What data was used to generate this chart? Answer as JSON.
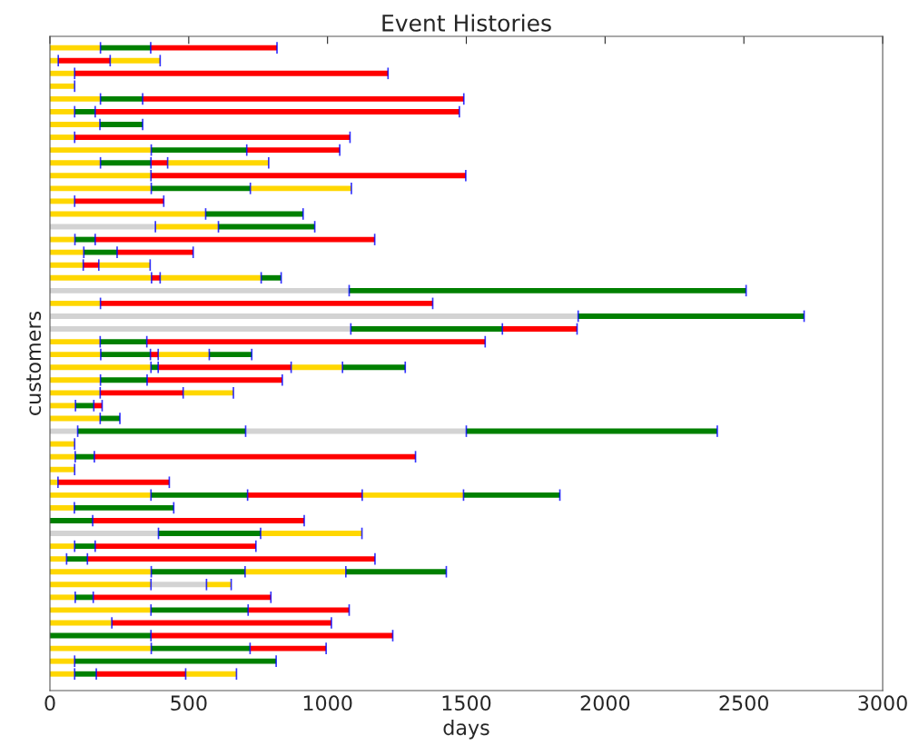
{
  "chart_data": {
    "type": "bar",
    "orientation": "horizontal",
    "stacked": true,
    "title": "Event Histories",
    "xlabel": "days",
    "ylabel": "customers",
    "categories": [
      null,
      null,
      null,
      null,
      null,
      null,
      null,
      null,
      null,
      null,
      null,
      null,
      null,
      null,
      null,
      null,
      null,
      null,
      null,
      null,
      null,
      null,
      null,
      null,
      null,
      null,
      null,
      null,
      null,
      null,
      null,
      null,
      null,
      null,
      null,
      null,
      null,
      null,
      null,
      null,
      null,
      null,
      null,
      null,
      null,
      null,
      null,
      null,
      null,
      null
    ],
    "tick_labels": "x",
    "xlim": [
      0,
      3000
    ],
    "xticks": [
      0,
      500,
      1000,
      1500,
      2000,
      2500,
      3000
    ],
    "grid": false,
    "series": [
      {
        "values": [
          182,
          30,
          89,
          89,
          182,
          89,
          180,
          89,
          365,
          182,
          364,
          365,
          89,
          561,
          380,
          90,
          122,
          120,
          366,
          1078,
          182,
          1903,
          1084,
          181,
          183,
          364,
          182,
          181,
          92,
          181,
          100,
          89,
          91,
          89,
          29,
          364,
          88,
          154,
          391,
          89,
          60,
          365,
          364,
          91,
          364,
          223,
          364,
          365,
          89,
          89
        ],
        "colors": [
          "#ffd700",
          "#ffd700",
          "#ffd700",
          "#ffd700",
          "#ffd700",
          "#ffd700",
          "#ffd700",
          "#ffd700",
          "#ffd700",
          "#ffd700",
          "#ffd700",
          "#ffd700",
          "#ffd700",
          "#ffd700",
          "#d3d3d3",
          "#ffd700",
          "#ffd700",
          "#ffd700",
          "#ffd700",
          "#d3d3d3",
          "#ffd700",
          "#d3d3d3",
          "#d3d3d3",
          "#ffd700",
          "#ffd700",
          "#ffd700",
          "#ffd700",
          "#ffd700",
          "#ffd700",
          "#ffd700",
          "#d3d3d3",
          "#ffd700",
          "#ffd700",
          "#ffd700",
          "#ffd700",
          "#ffd700",
          "#ffd700",
          "#008000",
          "#d3d3d3",
          "#ffd700",
          "#ffd700",
          "#ffd700",
          "#ffd700",
          "#ffd700",
          "#ffd700",
          "#ffd700",
          "#008000",
          "#ffd700",
          "#ffd700",
          "#ffd700"
        ]
      },
      {
        "values": [
          181,
          187,
          1129,
          null,
          152,
          74,
          154,
          992,
          344,
          182,
          1134,
          357,
          321,
          351,
          227,
          73,
          120,
          56,
          31,
          1430,
          1197,
          814,
          546,
          168,
          179,
          26,
          168,
          299,
          66,
          71,
          605,
          null,
          69,
          null,
          401,
          348,
          358,
          762,
          368,
          74,
          75,
          338,
          200,
          65,
          350,
          791,
          871,
          356,
          726,
          78
        ],
        "colors": [
          "#008000",
          "#ff0000",
          "#ff0000",
          null,
          "#008000",
          "#008000",
          "#008000",
          "#ff0000",
          "#008000",
          "#008000",
          "#ff0000",
          "#008000",
          "#ff0000",
          "#008000",
          "#ffd700",
          "#008000",
          "#008000",
          "#ff0000",
          "#ff0000",
          "#008000",
          "#ff0000",
          "#008000",
          "#008000",
          "#008000",
          "#008000",
          "#008000",
          "#008000",
          "#ff0000",
          "#008000",
          "#008000",
          "#008000",
          null,
          "#008000",
          null,
          "#ff0000",
          "#008000",
          "#008000",
          "#ff0000",
          "#008000",
          "#008000",
          "#008000",
          "#008000",
          "#d3d3d3",
          "#008000",
          "#008000",
          "#ff0000",
          "#ff0000",
          "#008000",
          "#008000",
          "#008000"
        ]
      },
      {
        "values": [
          455,
          180,
          null,
          null,
          1157,
          1312,
          null,
          null,
          335,
          60,
          null,
          364,
          null,
          null,
          347,
          1007,
          274,
          185,
          364,
          null,
          null,
          null,
          269,
          1219,
          28,
          479,
          487,
          181,
          30,
          null,
          795,
          null,
          1157,
          null,
          null,
          413,
          null,
          null,
          365,
          579,
          1036,
          363,
          89,
          640,
          364,
          null,
          null,
          274,
          null,
          322
        ],
        "colors": [
          "#ff0000",
          "#ffd700",
          null,
          null,
          "#ff0000",
          "#ff0000",
          null,
          null,
          "#ff0000",
          "#ff0000",
          null,
          "#ffd700",
          null,
          null,
          "#008000",
          "#ff0000",
          "#ff0000",
          "#ffd700",
          "#ffd700",
          null,
          null,
          null,
          "#ff0000",
          "#ff0000",
          "#ff0000",
          "#ff0000",
          "#ff0000",
          "#ffd700",
          "#ff0000",
          null,
          "#d3d3d3",
          null,
          "#ff0000",
          null,
          null,
          "#ff0000",
          null,
          null,
          "#ffd700",
          "#ff0000",
          "#ff0000",
          "#ffd700",
          "#ffd700",
          "#ff0000",
          "#ff0000",
          null,
          null,
          "#ff0000",
          null,
          "#ff0000"
        ]
      },
      {
        "values": [
          null,
          null,
          null,
          null,
          null,
          null,
          null,
          null,
          null,
          364,
          null,
          null,
          null,
          null,
          null,
          null,
          null,
          null,
          72,
          null,
          null,
          null,
          null,
          null,
          184,
          185,
          null,
          null,
          null,
          null,
          904,
          null,
          null,
          null,
          null,
          365,
          null,
          null,
          null,
          null,
          null,
          362,
          null,
          null,
          null,
          null,
          null,
          null,
          null,
          183
        ],
        "colors": [
          null,
          null,
          null,
          null,
          null,
          null,
          null,
          null,
          null,
          "#ffd700",
          null,
          null,
          null,
          null,
          null,
          null,
          null,
          null,
          "#008000",
          null,
          null,
          null,
          null,
          null,
          "#ffd700",
          "#ffd700",
          null,
          null,
          null,
          null,
          "#008000",
          null,
          null,
          null,
          null,
          "#ffd700",
          null,
          null,
          null,
          null,
          null,
          "#008000",
          null,
          null,
          null,
          null,
          null,
          null,
          null,
          "#ffd700"
        ]
      },
      {
        "values": [
          null,
          null,
          null,
          null,
          null,
          null,
          null,
          null,
          null,
          null,
          null,
          null,
          null,
          null,
          null,
          null,
          null,
          null,
          null,
          null,
          null,
          null,
          null,
          null,
          153,
          226,
          null,
          null,
          null,
          null,
          null,
          null,
          null,
          null,
          null,
          347,
          null,
          null,
          null,
          null,
          null,
          null,
          null,
          null,
          null,
          null,
          null,
          null,
          null,
          null
        ],
        "colors": [
          null,
          null,
          null,
          null,
          null,
          null,
          null,
          null,
          null,
          null,
          null,
          null,
          null,
          null,
          null,
          null,
          null,
          null,
          null,
          null,
          null,
          null,
          null,
          null,
          "#008000",
          "#008000",
          null,
          null,
          null,
          null,
          null,
          null,
          null,
          null,
          null,
          "#008000",
          null,
          null,
          null,
          null,
          null,
          null,
          null,
          null,
          null,
          null,
          null,
          null,
          null,
          null
        ]
      }
    ]
  }
}
